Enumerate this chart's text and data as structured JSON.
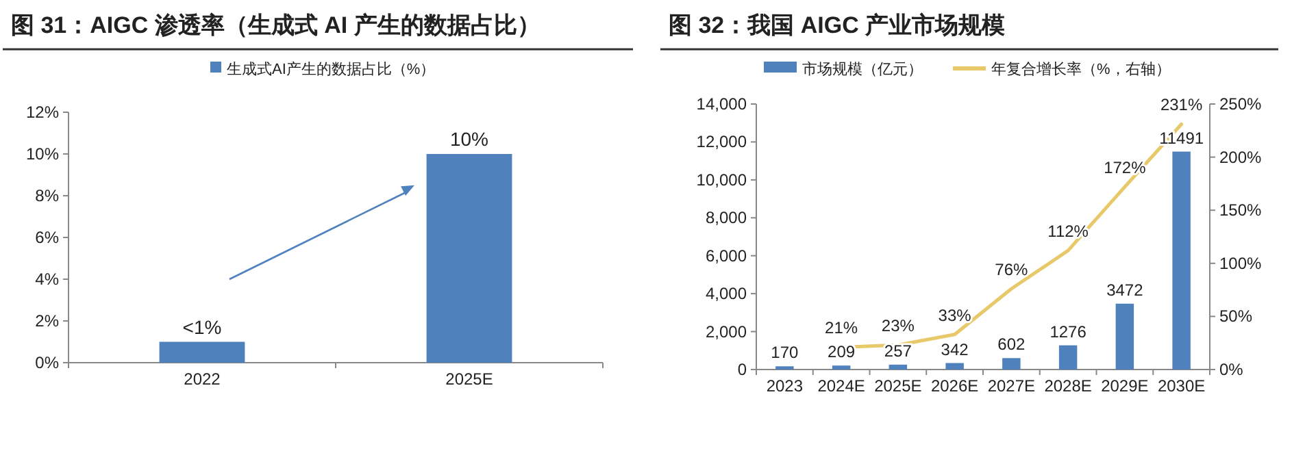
{
  "chart_data": [
    {
      "type": "bar",
      "title": "图 31：AIGC 渗透率（生成式 AI 产生的数据占比）",
      "categories": [
        "2022",
        "2025E"
      ],
      "series": [
        {
          "name": "生成式AI产生的数据占比（%）",
          "color": "#4f81bd",
          "values": [
            1,
            10
          ],
          "value_labels": [
            "<1%",
            "10%"
          ]
        }
      ],
      "ylim": [
        0,
        12
      ],
      "yticks": [
        {
          "value": 0,
          "label": "0%"
        },
        {
          "value": 2,
          "label": "2%"
        },
        {
          "value": 4,
          "label": "4%"
        },
        {
          "value": 6,
          "label": "6%"
        },
        {
          "value": 8,
          "label": "8%"
        },
        {
          "value": 10,
          "label": "10%"
        },
        {
          "value": 12,
          "label": "12%"
        }
      ],
      "legend": "top",
      "grid": false
    },
    {
      "type": "bar",
      "title": "图 32：我国 AIGC 产业市场规模",
      "categories": [
        "2023",
        "2024E",
        "2025E",
        "2026E",
        "2027E",
        "2028E",
        "2029E",
        "2030E"
      ],
      "series": [
        {
          "name": "市场规模（亿元）",
          "color": "#4f81bd",
          "values": [
            170,
            209,
            257,
            342,
            602,
            1276,
            3472,
            11491
          ],
          "value_labels": [
            "170",
            "209",
            "257",
            "342",
            "602",
            "1276",
            "3472",
            "11491"
          ]
        },
        {
          "name": "年复合增长率（%，右轴）",
          "type": "line",
          "axis": "y2",
          "color": "#e8c96a",
          "values": [
            null,
            21,
            23,
            33,
            76,
            112,
            172,
            231
          ],
          "value_labels": [
            null,
            "21%",
            "23%",
            "33%",
            "76%",
            "112%",
            "172%",
            "231%"
          ]
        }
      ],
      "ylim": [
        0,
        14000
      ],
      "yticks": [
        0,
        {
          "value": 2000,
          "label": "2,000"
        },
        {
          "value": 4000,
          "label": "4,000"
        },
        {
          "value": 6000,
          "label": "6,000"
        },
        {
          "value": 8000,
          "label": "8,000"
        },
        {
          "value": 10000,
          "label": "10,000"
        },
        {
          "value": 12000,
          "label": "12,000"
        },
        {
          "value": 14000,
          "label": "14,000"
        }
      ],
      "y2lim": [
        0,
        250
      ],
      "y2ticks": [
        {
          "value": 0,
          "label": "0%"
        },
        {
          "value": 50,
          "label": "50%"
        },
        {
          "value": 100,
          "label": "100%"
        },
        {
          "value": 150,
          "label": "150%"
        },
        {
          "value": 200,
          "label": "200%"
        },
        {
          "value": 250,
          "label": "250%"
        }
      ],
      "legend": "top",
      "grid": false
    }
  ]
}
